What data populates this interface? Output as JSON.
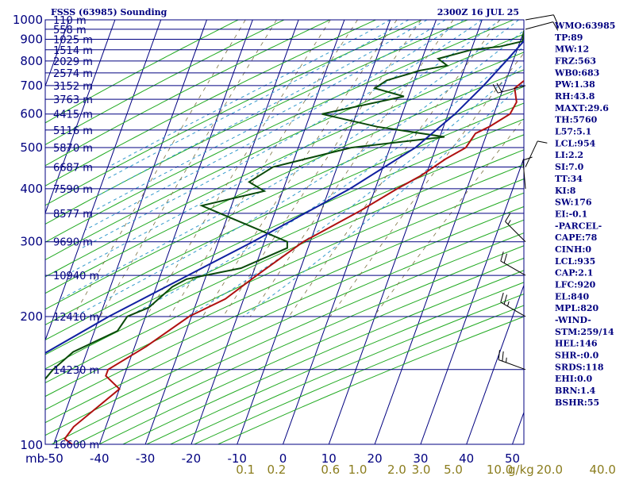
{
  "header": {
    "title": "FSSS (63985) Sounding",
    "time": "2300Z 16 JUL 25"
  },
  "indices": [
    "WMO:63985",
    "TP:89",
    "MW:12",
    "FRZ:563",
    "WB0:683",
    "PW:1.38",
    "RH:43.8",
    "MAXT:29.6",
    "TH:5760",
    "L57:5.1",
    "LCL:954",
    "LI:2.2",
    "SI:7.0",
    "TT:34",
    "KI:8",
    "SW:176",
    "EI:-0.1",
    "-PARCEL-",
    "CAPE:78",
    "CINH:0",
    "LCL:935",
    "CAP:2.1",
    "LFC:920",
    "EL:840",
    "MPL:820",
    "-WIND-",
    "STM:259/14",
    "HEL:146",
    "SHR-:0.0",
    "SRDS:118",
    "EHI:0.0",
    "BRN:1.4",
    "BSHR:55"
  ],
  "colors": {
    "background": "#ffffff",
    "axis_and_isobar": "#000080",
    "dry_adiabat": "#22aa22",
    "moist_adiabat": "#3399cc",
    "mixing_ratio": "#7a7040",
    "temperature": "#b01010",
    "dewpoint": "#0a4a0a",
    "parcel": "#1020a0"
  },
  "chart_data": {
    "type": "line",
    "title": "FSSS (63985) Sounding",
    "ylabel": "mb",
    "xlabel": "",
    "y_scale": "log",
    "ylim": [
      1000,
      100
    ],
    "xlim": [
      -50,
      50
    ],
    "skew": true,
    "pressure_ticks": [
      {
        "p": 100,
        "label": "100"
      },
      {
        "p": 200,
        "label": "200"
      },
      {
        "p": 300,
        "label": "300"
      },
      {
        "p": 400,
        "label": "400"
      },
      {
        "p": 500,
        "label": "500"
      },
      {
        "p": 600,
        "label": "600"
      },
      {
        "p": 700,
        "label": "700"
      },
      {
        "p": 800,
        "label": "800"
      },
      {
        "p": 900,
        "label": "900"
      },
      {
        "p": 1000,
        "label": "1000"
      }
    ],
    "unit_label": "mb",
    "temperature_ticks": [
      "-50",
      "-40",
      "-30",
      "-20",
      "-10",
      "0",
      "10",
      "20",
      "30",
      "40",
      "50"
    ],
    "mixing_ratio_ticks": [
      "0.1",
      "0.2",
      "0.6",
      "1.0",
      "2.0",
      "3.0",
      "5.0",
      "10.0",
      "20.0",
      "40.0"
    ],
    "mixing_ratio_unit": "g/kg",
    "height_labels": [
      {
        "p": 100,
        "label": "16600 m"
      },
      {
        "p": 150,
        "label": "14230 m"
      },
      {
        "p": 200,
        "label": "12410 m"
      },
      {
        "p": 250,
        "label": "10940 m"
      },
      {
        "p": 300,
        "label": "9690 m"
      },
      {
        "p": 350,
        "label": "8577 m"
      },
      {
        "p": 400,
        "label": "7590 m"
      },
      {
        "p": 450,
        "label": "6687 m"
      },
      {
        "p": 500,
        "label": "5870 m"
      },
      {
        "p": 550,
        "label": "5116 m"
      },
      {
        "p": 600,
        "label": "4415 m"
      },
      {
        "p": 650,
        "label": "3763 m"
      },
      {
        "p": 700,
        "label": "3152 m"
      },
      {
        "p": 750,
        "label": "2574 m"
      },
      {
        "p": 800,
        "label": "2029 m"
      },
      {
        "p": 850,
        "label": "1514 m"
      },
      {
        "p": 900,
        "label": "1025 m"
      },
      {
        "p": 950,
        "label": "558 m"
      },
      {
        "p": 1000,
        "label": "110 m"
      }
    ],
    "isobars": [
      100,
      150,
      200,
      250,
      300,
      350,
      400,
      450,
      500,
      550,
      600,
      650,
      700,
      750,
      800,
      850,
      900,
      950,
      1000
    ],
    "series": [
      {
        "key": "temperature",
        "points": [
          {
            "p": 970,
            "t": 24.0
          },
          {
            "p": 925,
            "t": 22.5
          },
          {
            "p": 880,
            "t": 24.0
          },
          {
            "p": 850,
            "t": 24.0
          },
          {
            "p": 800,
            "t": 24.5
          },
          {
            "p": 730,
            "t": 24.5
          },
          {
            "p": 690,
            "t": 22.5
          },
          {
            "p": 640,
            "t": 24.0
          },
          {
            "p": 600,
            "t": 23.5
          },
          {
            "p": 560,
            "t": 20.0
          },
          {
            "p": 540,
            "t": 17.5
          },
          {
            "p": 500,
            "t": 16.5
          },
          {
            "p": 470,
            "t": 13.0
          },
          {
            "p": 430,
            "t": 9.0
          },
          {
            "p": 400,
            "t": 4.8
          },
          {
            "p": 355,
            "t": -1.5
          },
          {
            "p": 300,
            "t": -11.5
          },
          {
            "p": 250,
            "t": -19.0
          },
          {
            "p": 220,
            "t": -24.0
          },
          {
            "p": 200,
            "t": -30.5
          },
          {
            "p": 170,
            "t": -37.5
          },
          {
            "p": 150,
            "t": -44.0
          },
          {
            "p": 145,
            "t": -44.0
          },
          {
            "p": 135,
            "t": -40.0
          },
          {
            "p": 110,
            "t": -47.0
          },
          {
            "p": 103,
            "t": -48.0
          },
          {
            "p": 100,
            "t": -46.0
          }
        ]
      },
      {
        "key": "dewpoint",
        "points": [
          {
            "p": 970,
            "t": 21.0
          },
          {
            "p": 940,
            "t": 20.0
          },
          {
            "p": 890,
            "t": 20.5
          },
          {
            "p": 865,
            "t": 16.0
          },
          {
            "p": 850,
            "t": 10.0
          },
          {
            "p": 810,
            "t": 3.5
          },
          {
            "p": 780,
            "t": 6.0
          },
          {
            "p": 760,
            "t": 0.5
          },
          {
            "p": 720,
            "t": -6.0
          },
          {
            "p": 690,
            "t": -8.0
          },
          {
            "p": 660,
            "t": -1.0
          },
          {
            "p": 600,
            "t": -17.5
          },
          {
            "p": 560,
            "t": -4.5
          },
          {
            "p": 530,
            "t": 11.0
          },
          {
            "p": 500,
            "t": -8.5
          },
          {
            "p": 450,
            "t": -24.0
          },
          {
            "p": 415,
            "t": -28.0
          },
          {
            "p": 395,
            "t": -24.0
          },
          {
            "p": 365,
            "t": -36.5
          },
          {
            "p": 300,
            "t": -15.0
          },
          {
            "p": 290,
            "t": -14.5
          },
          {
            "p": 260,
            "t": -23.0
          },
          {
            "p": 245,
            "t": -34.0
          },
          {
            "p": 235,
            "t": -36.5
          },
          {
            "p": 210,
            "t": -40.0
          },
          {
            "p": 200,
            "t": -44.0
          },
          {
            "p": 185,
            "t": -45.0
          },
          {
            "p": 165,
            "t": -53.0
          },
          {
            "p": 150,
            "t": -56.0
          },
          {
            "p": 135,
            "t": -58.0
          },
          {
            "p": 150,
            "t": -66.0
          },
          {
            "p": 100,
            "t": -69.0
          }
        ]
      },
      {
        "key": "parcel",
        "points": [
          {
            "p": 980,
            "t": 26.5
          },
          {
            "p": 950,
            "t": 23.5
          },
          {
            "p": 930,
            "t": 22.0
          },
          {
            "p": 900,
            "t": 21.0
          },
          {
            "p": 800,
            "t": 18.5
          },
          {
            "p": 700,
            "t": 15.5
          },
          {
            "p": 600,
            "t": 11.5
          },
          {
            "p": 500,
            "t": 5.5
          },
          {
            "p": 400,
            "t": -5.5
          },
          {
            "p": 300,
            "t": -22.5
          },
          {
            "p": 250,
            "t": -34.0
          },
          {
            "p": 200,
            "t": -48.0
          },
          {
            "p": 150,
            "t": -64.0
          },
          {
            "p": 105,
            "t": -86.0
          }
        ]
      }
    ],
    "wind_barbs": [
      {
        "p": 150,
        "dir": 290,
        "spd": 25
      },
      {
        "p": 200,
        "dir": 300,
        "spd": 25
      },
      {
        "p": 250,
        "dir": 300,
        "spd": 20
      },
      {
        "p": 300,
        "dir": 315,
        "spd": 15
      },
      {
        "p": 400,
        "dir": 355,
        "spd": 10
      },
      {
        "p": 450,
        "dir": 25,
        "spd": 10
      },
      {
        "p": 700,
        "dir": 255,
        "spd": 20
      },
      {
        "p": 950,
        "dir": 75,
        "spd": 10
      },
      {
        "p": 1000,
        "dir": 80,
        "spd": 10
      }
    ]
  }
}
